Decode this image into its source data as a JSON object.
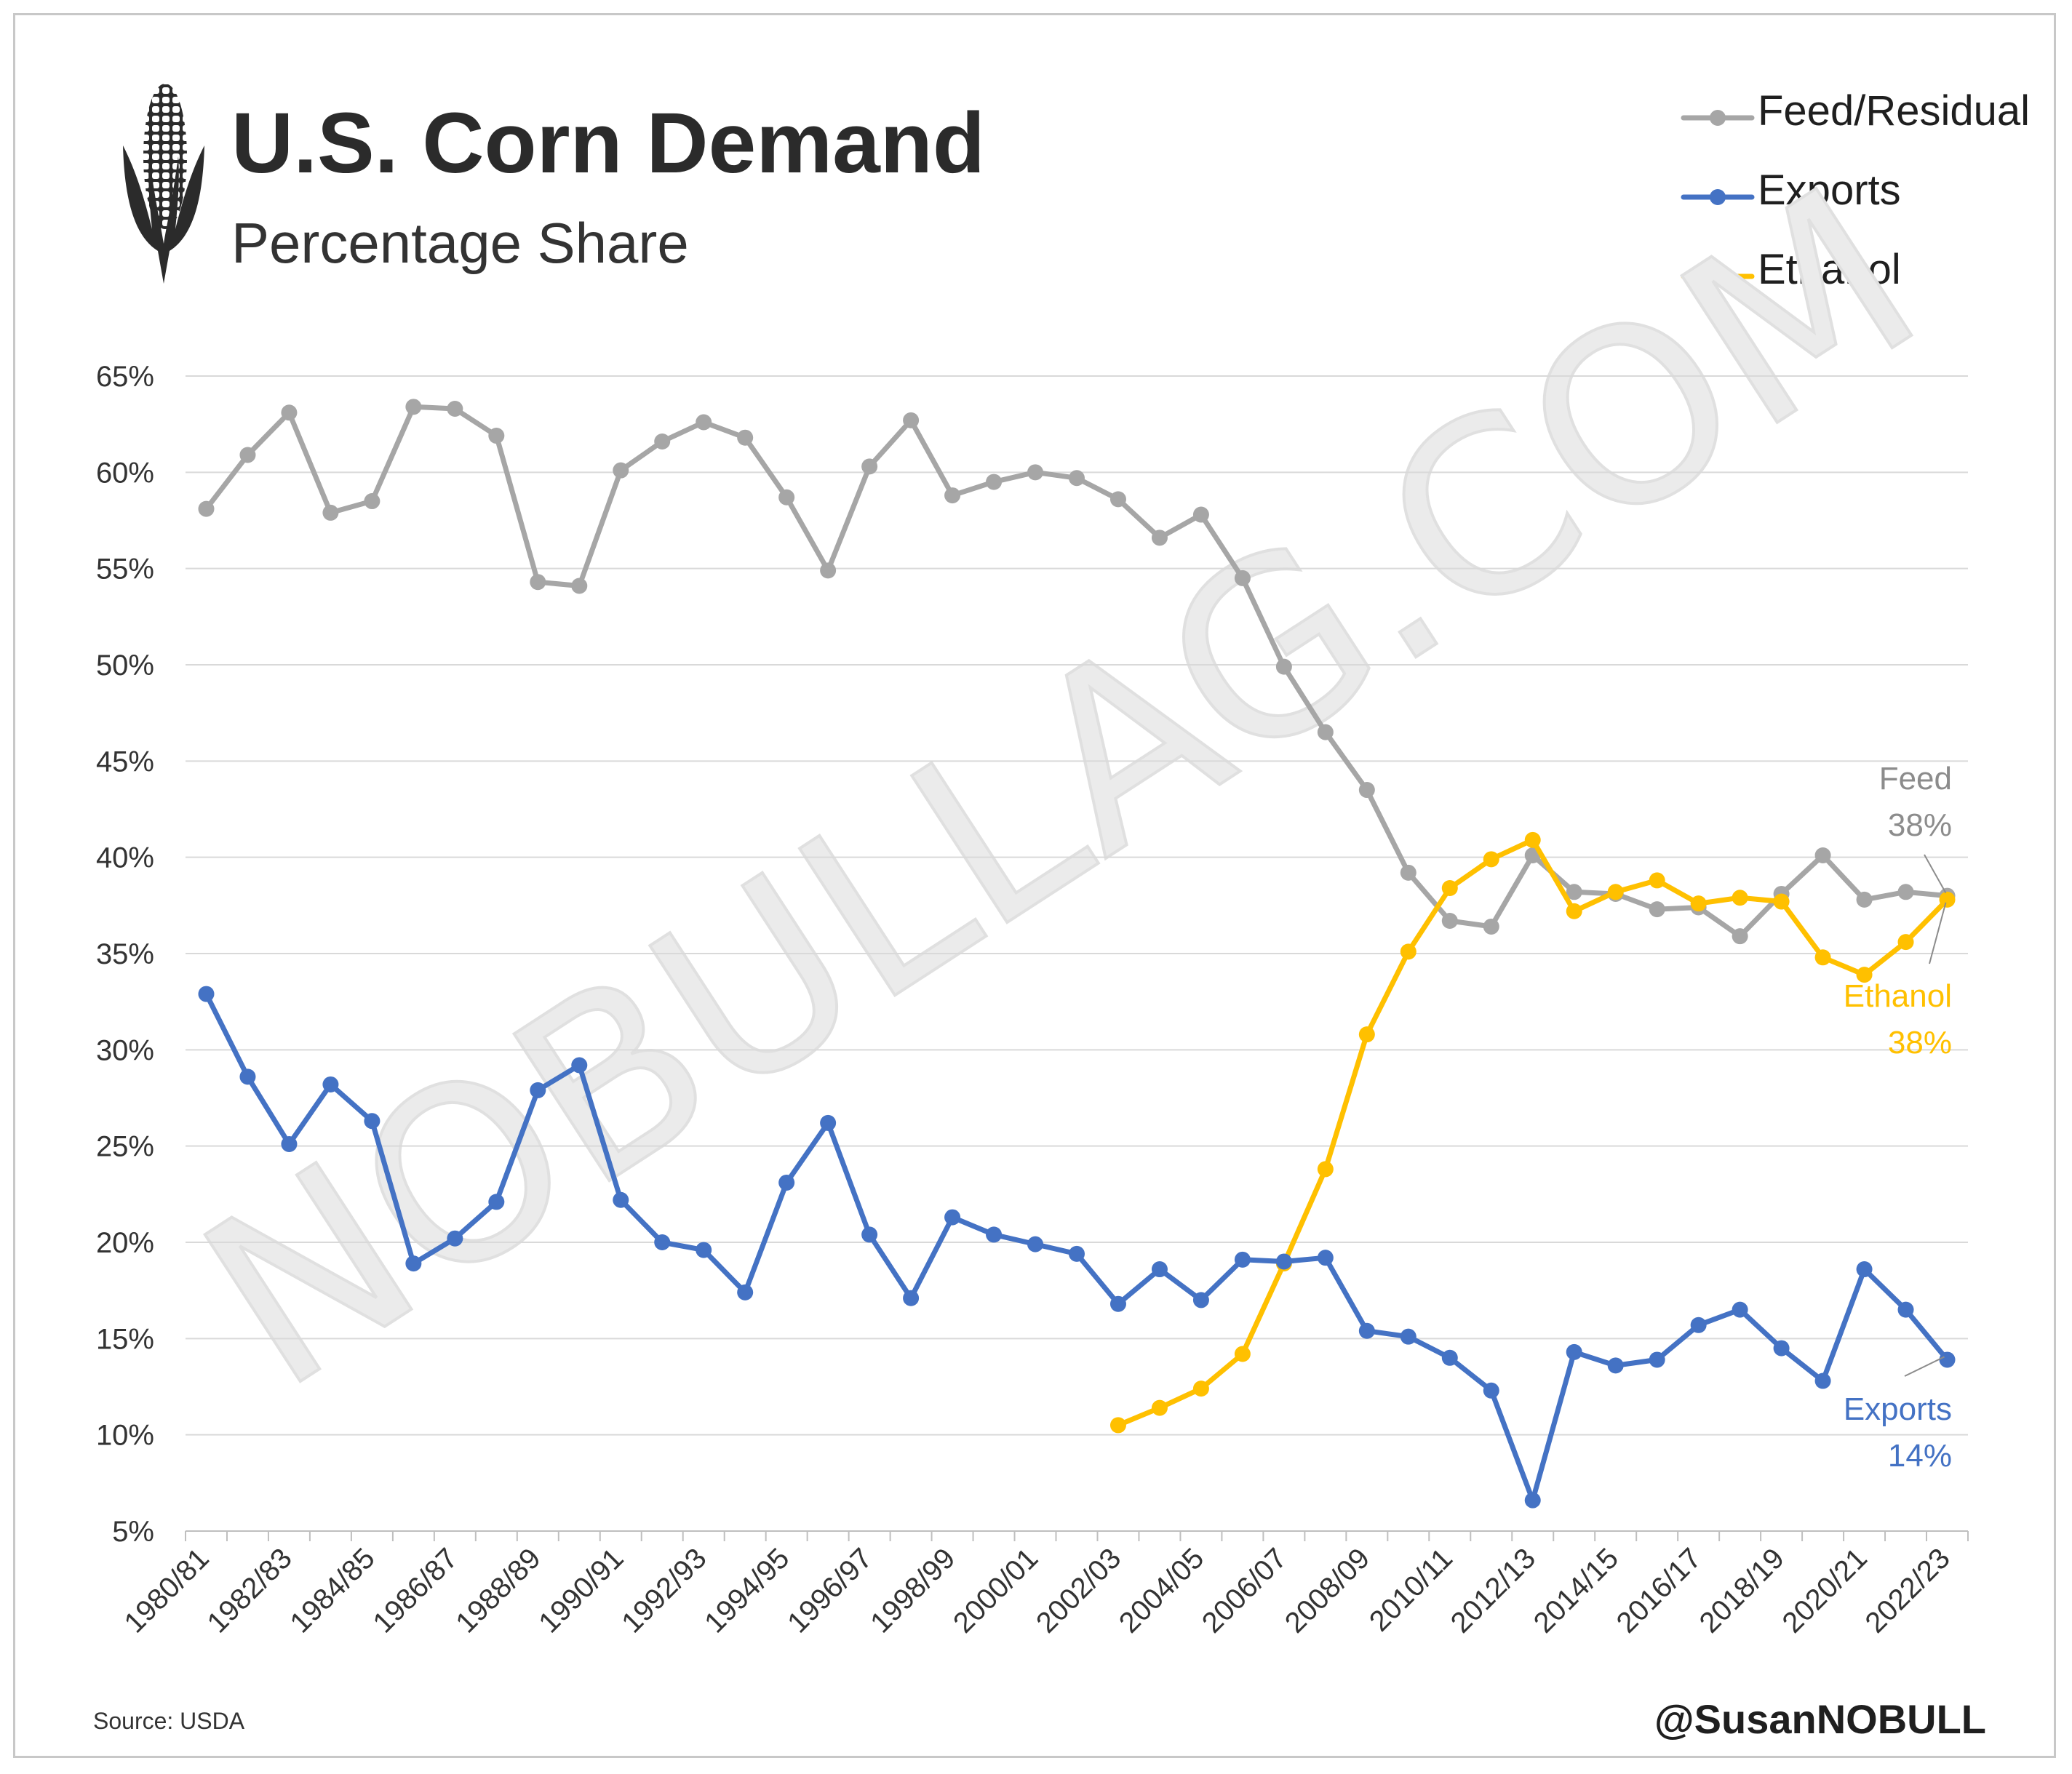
{
  "header": {
    "title": "U.S. Corn Demand",
    "subtitle": "Percentage Share",
    "icon": "corn-icon"
  },
  "footer": {
    "source": "Source: USDA",
    "handle": "@SusanNOBULL"
  },
  "watermark": "NOBULLAG.COM",
  "legend": [
    {
      "name": "Feed/Residual",
      "color": "#a6a6a6"
    },
    {
      "name": "Exports",
      "color": "#4472c4"
    },
    {
      "name": "Ethanol",
      "color": "#ffc000"
    }
  ],
  "annotations": {
    "feed": {
      "label": "Feed",
      "value": "38%"
    },
    "ethanol": {
      "label": "Ethanol",
      "value": "38%"
    },
    "exports": {
      "label": "Exports",
      "value": "14%"
    }
  },
  "chart_data": {
    "type": "line",
    "x": [
      "1980/81",
      "1981/82",
      "1982/83",
      "1983/84",
      "1984/85",
      "1985/86",
      "1986/87",
      "1987/88",
      "1988/89",
      "1989/90",
      "1990/91",
      "1991/92",
      "1992/93",
      "1993/94",
      "1994/95",
      "1995/96",
      "1996/97",
      "1997/98",
      "1998/99",
      "1999/00",
      "2000/01",
      "2001/02",
      "2002/03",
      "2003/04",
      "2004/05",
      "2005/06",
      "2006/07",
      "2007/08",
      "2008/09",
      "2009/10",
      "2010/11",
      "2011/12",
      "2012/13",
      "2013/14",
      "2014/15",
      "2015/16",
      "2016/17",
      "2017/18",
      "2018/19",
      "2019/20",
      "2020/21",
      "2021/22",
      "2022/23"
    ],
    "x_tick_labels": [
      "1980/81",
      "1982/83",
      "1984/85",
      "1986/87",
      "1988/89",
      "1990/91",
      "1992/93",
      "1994/95",
      "1996/97",
      "1998/99",
      "2000/01",
      "2002/03",
      "2004/05",
      "2006/07",
      "2008/09",
      "2010/11",
      "2012/13",
      "2014/15",
      "2016/17",
      "2018/19",
      "2020/21",
      "2022/23"
    ],
    "ylim": [
      5,
      65
    ],
    "y_ticks": [
      5,
      10,
      15,
      20,
      25,
      30,
      35,
      40,
      45,
      50,
      55,
      60,
      65
    ],
    "y_tick_suffix": "%",
    "grid": true,
    "legend_position": "top-right",
    "series": [
      {
        "name": "Feed/Residual",
        "color": "#a6a6a6",
        "values": [
          58.1,
          60.9,
          63.1,
          57.9,
          58.5,
          63.4,
          63.3,
          61.9,
          54.3,
          54.1,
          60.1,
          61.6,
          62.6,
          61.8,
          58.7,
          54.9,
          60.3,
          62.7,
          58.8,
          59.5,
          60.0,
          59.7,
          58.6,
          56.6,
          57.8,
          54.5,
          49.9,
          46.5,
          43.5,
          39.2,
          36.7,
          36.4,
          40.1,
          38.2,
          38.1,
          37.3,
          37.4,
          35.9,
          38.1,
          40.1,
          37.8,
          38.2,
          38.0
        ]
      },
      {
        "name": "Exports",
        "color": "#4472c4",
        "values": [
          32.9,
          28.6,
          25.1,
          28.2,
          26.3,
          18.9,
          20.2,
          22.1,
          27.9,
          29.2,
          22.2,
          20.0,
          19.6,
          17.4,
          23.1,
          26.2,
          20.4,
          17.1,
          21.3,
          20.4,
          19.9,
          19.4,
          16.8,
          18.6,
          17.0,
          19.1,
          19.0,
          19.2,
          15.4,
          15.1,
          14.0,
          12.3,
          6.6,
          14.3,
          13.6,
          13.9,
          15.7,
          16.5,
          14.5,
          12.8,
          18.6,
          16.5,
          13.9
        ]
      },
      {
        "name": "Ethanol",
        "color": "#ffc000",
        "values": [
          null,
          null,
          null,
          null,
          null,
          null,
          null,
          null,
          null,
          null,
          null,
          null,
          null,
          null,
          null,
          null,
          null,
          null,
          null,
          null,
          null,
          null,
          10.5,
          11.4,
          12.4,
          14.2,
          18.9,
          23.8,
          30.8,
          35.1,
          38.4,
          39.9,
          40.9,
          37.2,
          38.2,
          38.8,
          37.6,
          37.9,
          37.7,
          34.8,
          33.9,
          35.6,
          37.8
        ]
      }
    ]
  }
}
